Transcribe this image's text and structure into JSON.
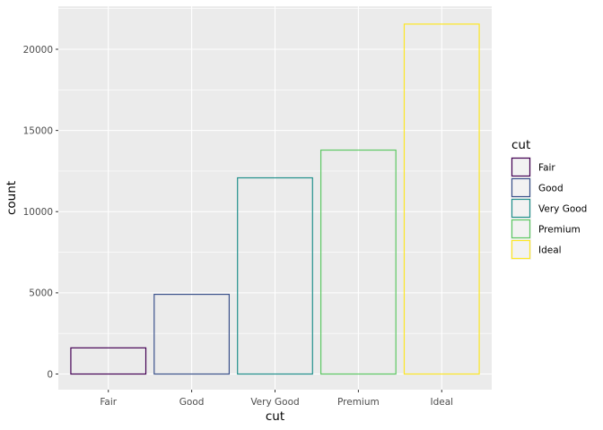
{
  "chart_data": {
    "type": "bar",
    "categories": [
      "Fair",
      "Good",
      "Very Good",
      "Premium",
      "Ideal"
    ],
    "values": [
      1610,
      4906,
      12082,
      13791,
      21551
    ],
    "xlabel": "cut",
    "ylabel": "count",
    "ylim": [
      0,
      22630
    ],
    "yticks": [
      0,
      5000,
      10000,
      15000,
      20000
    ],
    "ytick_labels": [
      "0",
      "5000",
      "10000",
      "15000",
      "20000"
    ],
    "fill": "none",
    "outline_colors": [
      "#440154",
      "#3B528B",
      "#21908C",
      "#5DC863",
      "#FDE725"
    ],
    "panel_background": "#EBEBEB",
    "grid": true,
    "grid_color": "#FFFFFF",
    "legend": {
      "title": "cut",
      "position": "right",
      "entries": [
        "Fair",
        "Good",
        "Very Good",
        "Premium",
        "Ideal"
      ]
    }
  }
}
